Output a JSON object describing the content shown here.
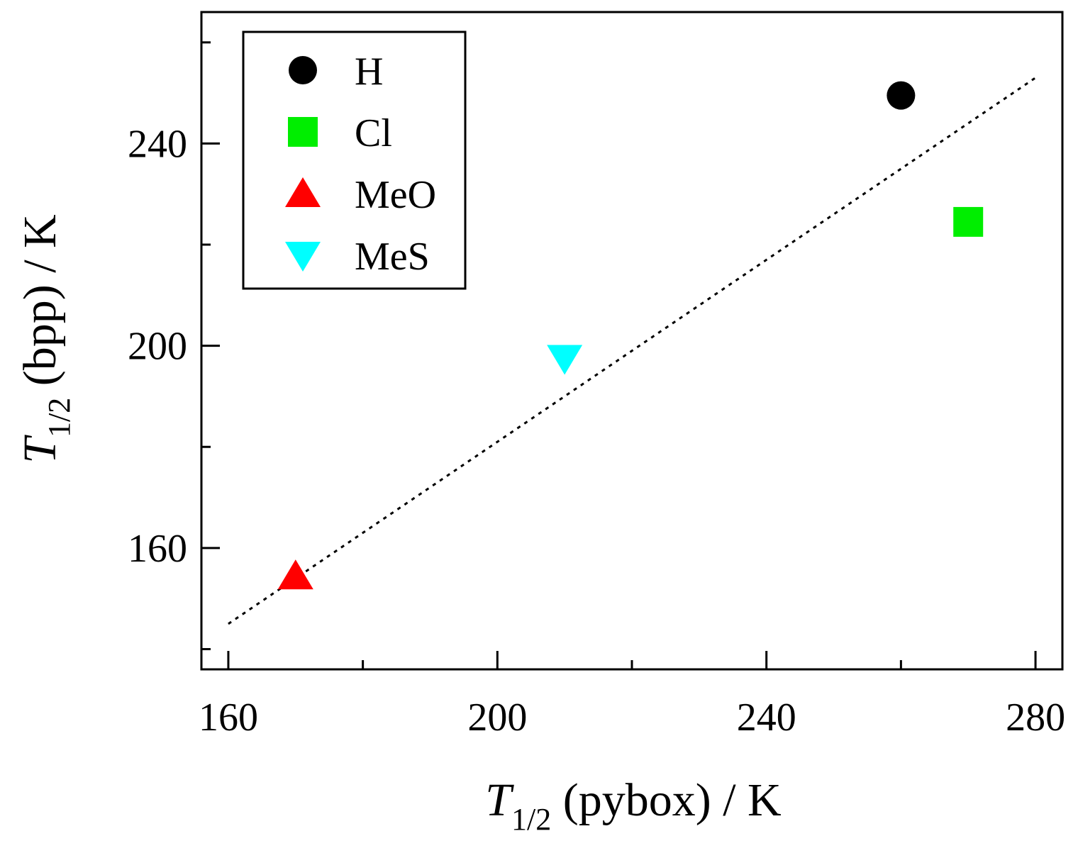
{
  "chart_data": {
    "type": "scatter",
    "x_title": {
      "var": "T",
      "sub": "1/2",
      "rest": " (pybox) / K"
    },
    "y_title": {
      "var": "T",
      "sub": "1/2",
      "rest": " (bpp) / K"
    },
    "xlim": [
      156,
      284
    ],
    "ylim": [
      136,
      266
    ],
    "x_major_ticks": [
      160,
      200,
      240,
      280
    ],
    "x_minor_ticks": [
      180,
      220,
      260
    ],
    "y_major_ticks": [
      160,
      200,
      240
    ],
    "y_minor_ticks": [
      140,
      180,
      220,
      260
    ],
    "tick_labels_x": [
      "160",
      "200",
      "240",
      "280"
    ],
    "tick_labels_y": [
      "160",
      "200",
      "240"
    ],
    "series": [
      {
        "name": "H",
        "marker": "circle",
        "color": "#000000",
        "x": 260,
        "y": 249.5
      },
      {
        "name": "Cl",
        "marker": "square",
        "color": "#00ee00",
        "x": 270,
        "y": 224.5
      },
      {
        "name": "MeO",
        "marker": "triangle-up",
        "color": "#ff0000",
        "x": 170,
        "y": 154.5
      },
      {
        "name": "MeS",
        "marker": "triangle-down",
        "color": "#00ffff",
        "x": 210,
        "y": 197.5
      }
    ],
    "fit_line": {
      "style": "dotted",
      "color": "#000000",
      "x": [
        160,
        280
      ],
      "y": [
        145,
        253
      ]
    },
    "legend": {
      "position": "top-left",
      "labels": [
        "H",
        "Cl",
        "MeO",
        "MeS"
      ]
    }
  }
}
